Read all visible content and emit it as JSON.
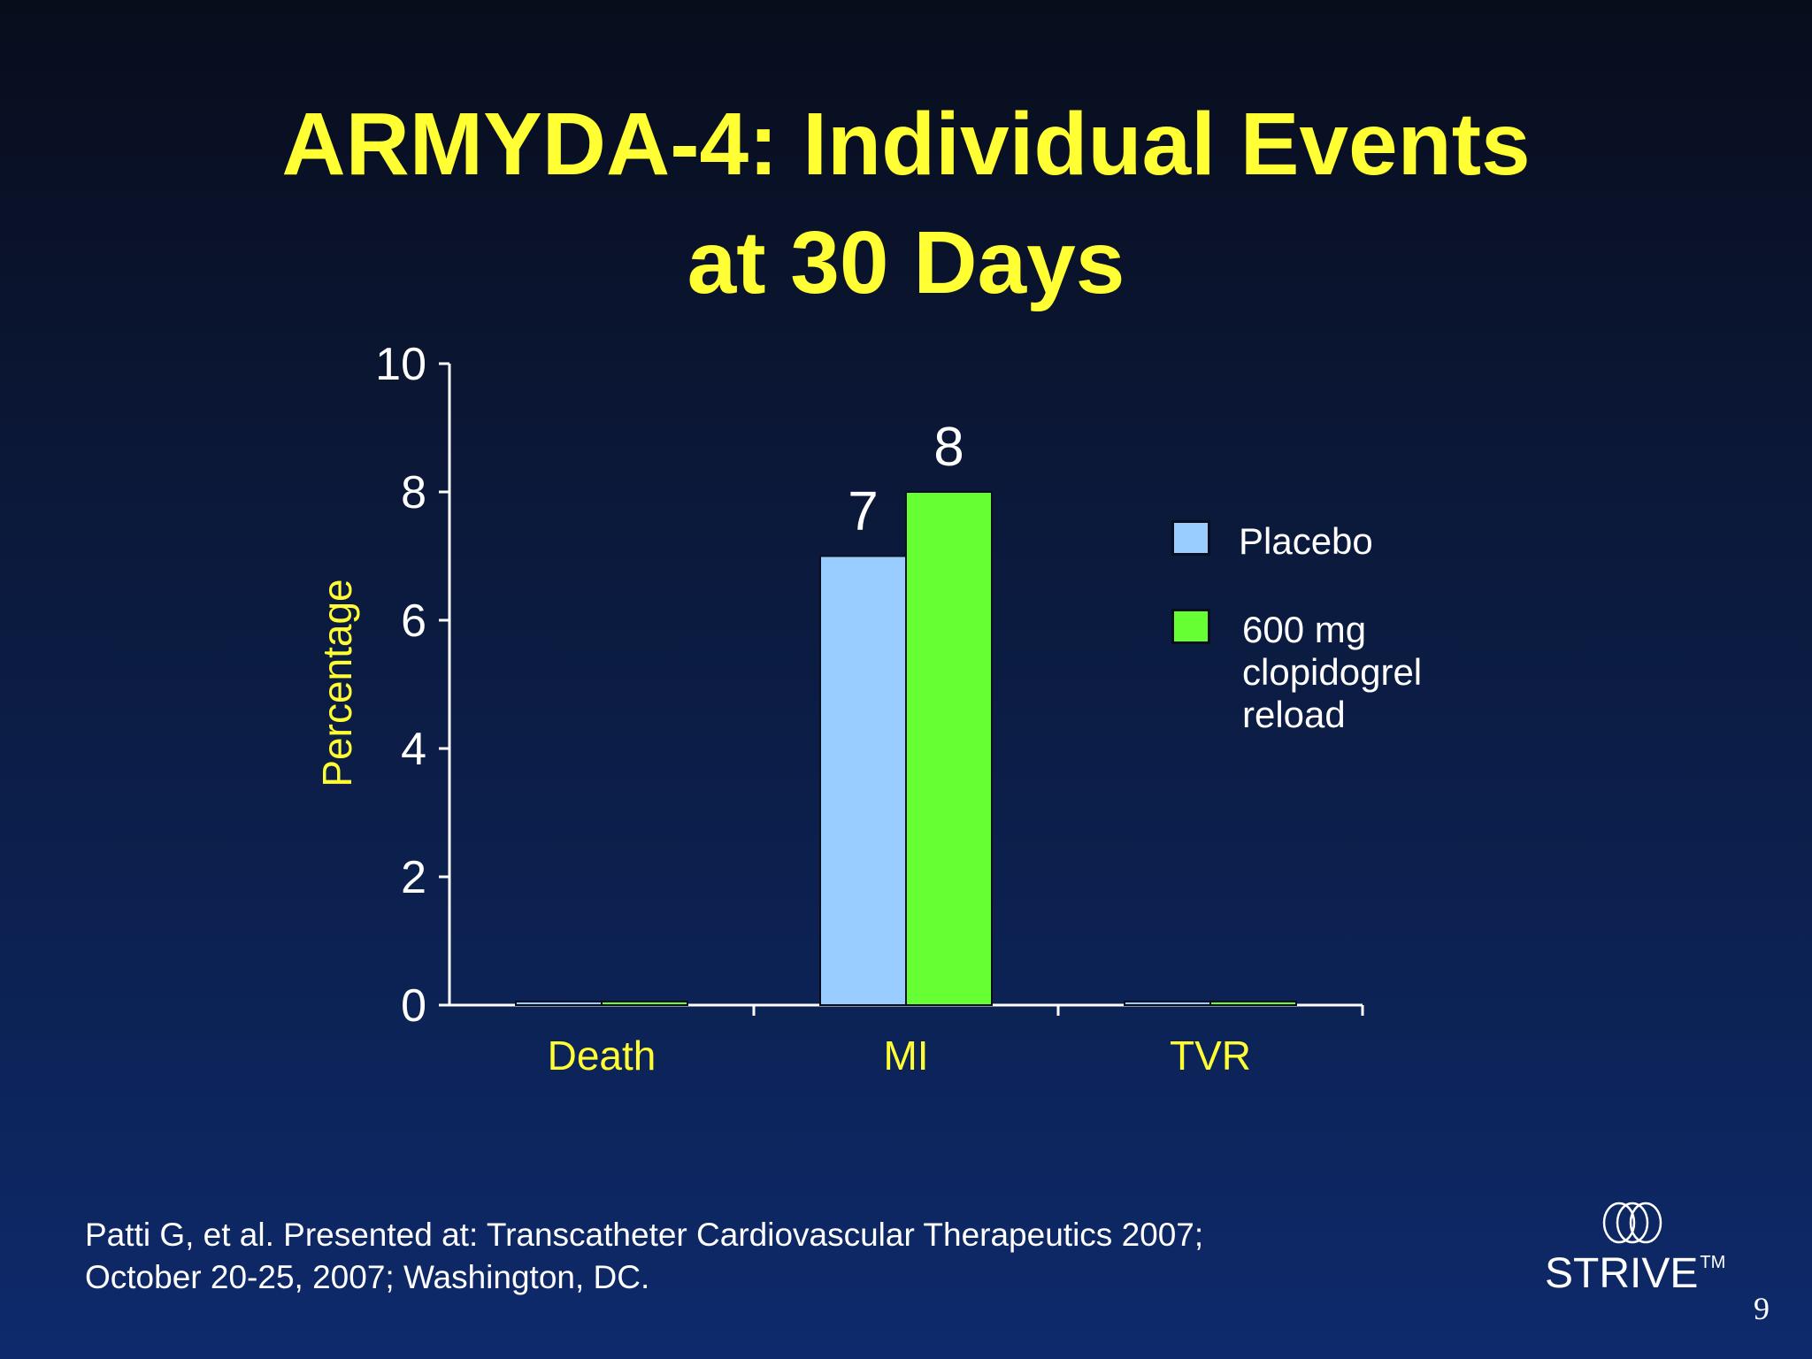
{
  "slide": {
    "title_line1": "ARMYDA-4: Individual Events",
    "title_line2": "at 30 Days",
    "citation_line1": "Patti G, et al. Presented at: Transcatheter Cardiovascular Therapeutics 2007;",
    "citation_line2": "October 20-25, 2007; Washington, DC.",
    "logo_text": "STRIVE",
    "logo_tm": "TM",
    "page_number": "9"
  },
  "colors": {
    "title": "#ffff33",
    "placebo": "#99ccff",
    "clopidogrel": "#66ff33"
  },
  "chart_data": {
    "type": "bar",
    "title": "ARMYDA-4: Individual Events at 30 Days",
    "xlabel": "",
    "ylabel": "Percentage",
    "ylim": [
      0,
      10
    ],
    "yticks": [
      0,
      2,
      4,
      6,
      8,
      10
    ],
    "categories": [
      "Death",
      "MI",
      "TVR"
    ],
    "series": [
      {
        "name": "Placebo",
        "legend": "Placebo",
        "color": "#99ccff",
        "values": [
          0,
          7,
          0
        ],
        "labels": [
          "",
          "7",
          ""
        ]
      },
      {
        "name": "600 mg clopidogrel reload",
        "legend": "600 mg\nclopidogrel\nreload",
        "color": "#66ff33",
        "values": [
          0,
          8,
          0
        ],
        "labels": [
          "",
          "8",
          ""
        ]
      }
    ],
    "legend_position": "right",
    "grid": false
  }
}
